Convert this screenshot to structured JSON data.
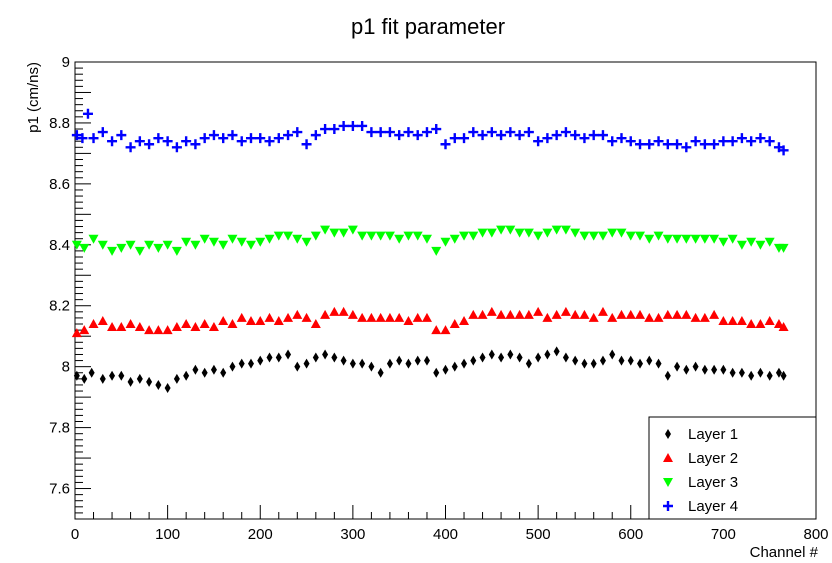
{
  "chart_data": {
    "type": "scatter",
    "title": "p1 fit parameter",
    "xlabel": "Channel #",
    "ylabel": "p1 (cm/ns)",
    "xlim": [
      0,
      800
    ],
    "ylim": [
      7.5,
      9.0
    ],
    "x_ticks": [
      "0",
      "100",
      "200",
      "300",
      "400",
      "500",
      "600",
      "700",
      "800"
    ],
    "y_ticks": [
      "7.6",
      "7.8",
      "8",
      "8.2",
      "8.4",
      "8.6",
      "8.8",
      "9"
    ],
    "legend_position": "bottom-right",
    "grid": false,
    "series": [
      {
        "name": "Layer 1",
        "marker": "diamond",
        "color": "#000000",
        "x": [
          2,
          10,
          18,
          30,
          40,
          50,
          60,
          70,
          80,
          90,
          100,
          110,
          120,
          130,
          140,
          150,
          160,
          170,
          180,
          190,
          200,
          210,
          220,
          230,
          240,
          250,
          260,
          270,
          280,
          290,
          300,
          310,
          320,
          330,
          340,
          350,
          360,
          370,
          380,
          390,
          400,
          410,
          420,
          430,
          440,
          450,
          460,
          470,
          480,
          490,
          500,
          510,
          520,
          530,
          540,
          550,
          560,
          570,
          580,
          590,
          600,
          610,
          620,
          630,
          640,
          650,
          660,
          670,
          680,
          690,
          700,
          710,
          720,
          730,
          740,
          750,
          760,
          765
        ],
        "y": [
          7.97,
          7.96,
          7.98,
          7.96,
          7.97,
          7.97,
          7.95,
          7.96,
          7.95,
          7.94,
          7.93,
          7.96,
          7.97,
          7.99,
          7.98,
          7.99,
          7.98,
          8.0,
          8.01,
          8.01,
          8.02,
          8.03,
          8.03,
          8.04,
          8.0,
          8.01,
          8.03,
          8.04,
          8.03,
          8.02,
          8.01,
          8.01,
          8.0,
          7.98,
          8.01,
          8.02,
          8.01,
          8.02,
          8.02,
          7.98,
          7.99,
          8.0,
          8.01,
          8.02,
          8.03,
          8.04,
          8.03,
          8.04,
          8.03,
          8.01,
          8.03,
          8.04,
          8.05,
          8.03,
          8.02,
          8.01,
          8.01,
          8.02,
          8.04,
          8.02,
          8.02,
          8.01,
          8.02,
          8.01,
          7.97,
          8.0,
          7.99,
          8.0,
          7.99,
          7.99,
          7.99,
          7.98,
          7.98,
          7.97,
          7.98,
          7.97,
          7.98,
          7.97
        ]
      },
      {
        "name": "Layer 2",
        "marker": "triangle-up",
        "color": "#ff0000",
        "x": [
          2,
          10,
          20,
          30,
          40,
          50,
          60,
          70,
          80,
          90,
          100,
          110,
          120,
          130,
          140,
          150,
          160,
          170,
          180,
          190,
          200,
          210,
          220,
          230,
          240,
          250,
          260,
          270,
          280,
          290,
          300,
          310,
          320,
          330,
          340,
          350,
          360,
          370,
          380,
          390,
          400,
          410,
          420,
          430,
          440,
          450,
          460,
          470,
          480,
          490,
          500,
          510,
          520,
          530,
          540,
          550,
          560,
          570,
          580,
          590,
          600,
          610,
          620,
          630,
          640,
          650,
          660,
          670,
          680,
          690,
          700,
          710,
          720,
          730,
          740,
          750,
          760,
          765
        ],
        "y": [
          8.11,
          8.12,
          8.14,
          8.15,
          8.13,
          8.13,
          8.14,
          8.13,
          8.12,
          8.12,
          8.12,
          8.13,
          8.14,
          8.13,
          8.14,
          8.13,
          8.15,
          8.14,
          8.16,
          8.15,
          8.15,
          8.16,
          8.15,
          8.16,
          8.17,
          8.16,
          8.14,
          8.17,
          8.18,
          8.18,
          8.17,
          8.16,
          8.16,
          8.16,
          8.16,
          8.16,
          8.15,
          8.16,
          8.16,
          8.12,
          8.12,
          8.14,
          8.15,
          8.17,
          8.17,
          8.18,
          8.17,
          8.17,
          8.17,
          8.17,
          8.18,
          8.16,
          8.17,
          8.18,
          8.17,
          8.17,
          8.16,
          8.18,
          8.16,
          8.17,
          8.17,
          8.17,
          8.16,
          8.16,
          8.17,
          8.17,
          8.17,
          8.16,
          8.16,
          8.17,
          8.15,
          8.15,
          8.15,
          8.14,
          8.14,
          8.15,
          8.14,
          8.13
        ]
      },
      {
        "name": "Layer 3",
        "marker": "triangle-down",
        "color": "#00ff00",
        "x": [
          2,
          10,
          20,
          30,
          40,
          50,
          60,
          70,
          80,
          90,
          100,
          110,
          120,
          130,
          140,
          150,
          160,
          170,
          180,
          190,
          200,
          210,
          220,
          230,
          240,
          250,
          260,
          270,
          280,
          290,
          300,
          310,
          320,
          330,
          340,
          350,
          360,
          370,
          380,
          390,
          400,
          410,
          420,
          430,
          440,
          450,
          460,
          470,
          480,
          490,
          500,
          510,
          520,
          530,
          540,
          550,
          560,
          570,
          580,
          590,
          600,
          610,
          620,
          630,
          640,
          650,
          660,
          670,
          680,
          690,
          700,
          710,
          720,
          730,
          740,
          750,
          760,
          765
        ],
        "y": [
          8.4,
          8.39,
          8.42,
          8.4,
          8.38,
          8.39,
          8.4,
          8.38,
          8.4,
          8.39,
          8.4,
          8.38,
          8.41,
          8.4,
          8.42,
          8.41,
          8.4,
          8.42,
          8.41,
          8.4,
          8.41,
          8.42,
          8.43,
          8.43,
          8.42,
          8.41,
          8.43,
          8.45,
          8.44,
          8.44,
          8.45,
          8.43,
          8.43,
          8.43,
          8.43,
          8.42,
          8.43,
          8.43,
          8.42,
          8.38,
          8.41,
          8.42,
          8.43,
          8.43,
          8.44,
          8.44,
          8.45,
          8.45,
          8.44,
          8.44,
          8.43,
          8.44,
          8.45,
          8.45,
          8.44,
          8.43,
          8.43,
          8.43,
          8.44,
          8.44,
          8.43,
          8.43,
          8.42,
          8.43,
          8.42,
          8.42,
          8.42,
          8.42,
          8.42,
          8.42,
          8.41,
          8.42,
          8.4,
          8.41,
          8.4,
          8.41,
          8.39,
          8.39
        ]
      },
      {
        "name": "Layer 4",
        "marker": "plus",
        "color": "#0000ff",
        "x": [
          2,
          8,
          14,
          20,
          30,
          40,
          50,
          60,
          70,
          80,
          90,
          100,
          110,
          120,
          130,
          140,
          150,
          160,
          170,
          180,
          190,
          200,
          210,
          220,
          230,
          240,
          250,
          260,
          270,
          280,
          290,
          300,
          310,
          320,
          330,
          340,
          350,
          360,
          370,
          380,
          390,
          400,
          410,
          420,
          430,
          440,
          450,
          460,
          470,
          480,
          490,
          500,
          510,
          520,
          530,
          540,
          550,
          560,
          570,
          580,
          590,
          600,
          610,
          620,
          630,
          640,
          650,
          660,
          670,
          680,
          690,
          700,
          710,
          720,
          730,
          740,
          750,
          760,
          765
        ],
        "y": [
          8.76,
          8.75,
          8.83,
          8.75,
          8.77,
          8.74,
          8.76,
          8.72,
          8.74,
          8.73,
          8.75,
          8.74,
          8.72,
          8.74,
          8.73,
          8.75,
          8.76,
          8.75,
          8.76,
          8.74,
          8.75,
          8.75,
          8.74,
          8.75,
          8.76,
          8.77,
          8.73,
          8.76,
          8.78,
          8.78,
          8.79,
          8.79,
          8.79,
          8.77,
          8.77,
          8.77,
          8.76,
          8.77,
          8.76,
          8.77,
          8.78,
          8.73,
          8.75,
          8.75,
          8.77,
          8.76,
          8.77,
          8.76,
          8.77,
          8.76,
          8.77,
          8.74,
          8.75,
          8.76,
          8.77,
          8.76,
          8.75,
          8.76,
          8.76,
          8.74,
          8.75,
          8.74,
          8.73,
          8.73,
          8.74,
          8.73,
          8.73,
          8.72,
          8.74,
          8.73,
          8.73,
          8.74,
          8.74,
          8.75,
          8.74,
          8.75,
          8.74,
          8.72,
          8.71
        ]
      }
    ]
  }
}
